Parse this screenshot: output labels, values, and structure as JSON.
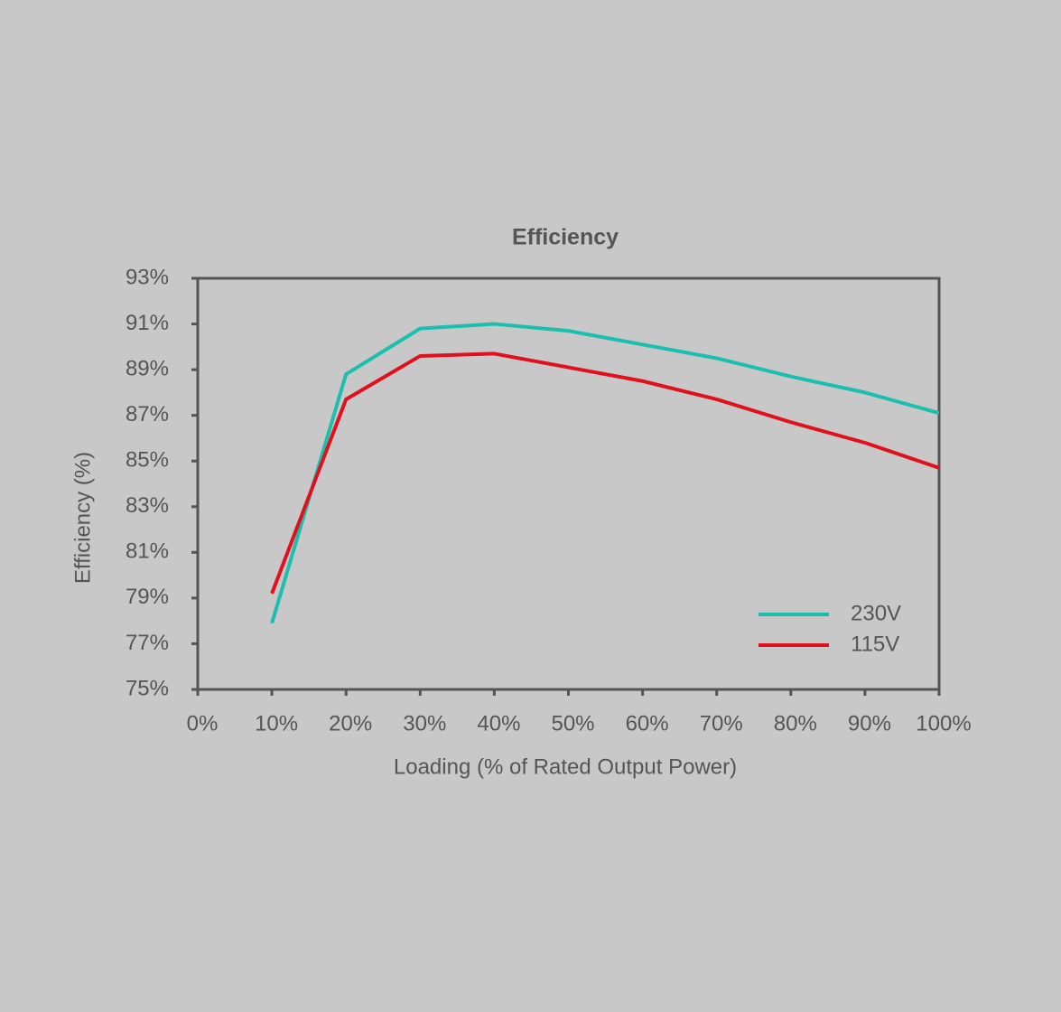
{
  "chart_data": {
    "type": "line",
    "title": "Efficiency",
    "x_label": "Loading (% of Rated Output Power)",
    "y_label": "Efficiency (%)",
    "x": [
      10,
      20,
      30,
      40,
      50,
      60,
      70,
      80,
      90,
      100
    ],
    "series": [
      {
        "name": "230V",
        "color": "#1abfae",
        "values": [
          77.9,
          88.8,
          90.8,
          91.0,
          90.7,
          90.1,
          89.5,
          88.7,
          88.0,
          87.1
        ]
      },
      {
        "name": "115V",
        "color": "#e0101c",
        "values": [
          79.2,
          87.7,
          89.6,
          89.7,
          89.1,
          88.5,
          87.7,
          86.7,
          85.8,
          84.7
        ]
      }
    ],
    "xlim": [
      0,
      100
    ],
    "xticks": [
      {
        "value": 0,
        "label": "0%"
      },
      {
        "value": 10,
        "label": "10%"
      },
      {
        "value": 20,
        "label": "20%"
      },
      {
        "value": 30,
        "label": "30%"
      },
      {
        "value": 40,
        "label": "40%"
      },
      {
        "value": 50,
        "label": "50%"
      },
      {
        "value": 60,
        "label": "60%"
      },
      {
        "value": 70,
        "label": "70%"
      },
      {
        "value": 80,
        "label": "80%"
      },
      {
        "value": 90,
        "label": "90%"
      },
      {
        "value": 100,
        "label": "100%"
      }
    ],
    "ylim": [
      75,
      93
    ],
    "yticks": [
      {
        "value": 75,
        "label": "75%"
      },
      {
        "value": 77,
        "label": "77%"
      },
      {
        "value": 79,
        "label": "79%"
      },
      {
        "value": 81,
        "label": "81%"
      },
      {
        "value": 83,
        "label": "83%"
      },
      {
        "value": 85,
        "label": "85%"
      },
      {
        "value": 87,
        "label": "87%"
      },
      {
        "value": 89,
        "label": "89%"
      },
      {
        "value": 91,
        "label": "91%"
      },
      {
        "value": 93,
        "label": "93%"
      }
    ],
    "grid": false,
    "legend": "lower right"
  }
}
